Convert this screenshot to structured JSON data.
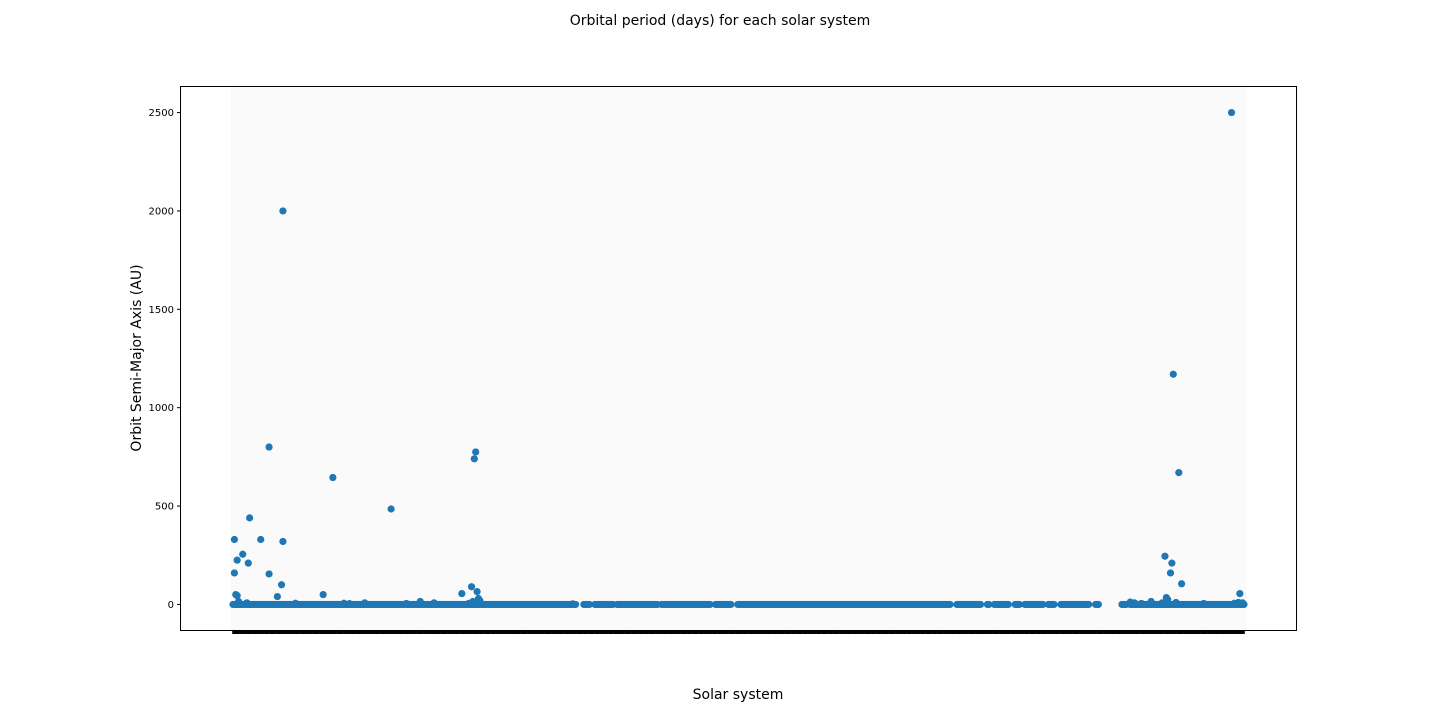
{
  "chart_data": {
    "type": "scatter",
    "title": "Orbital period (days) for each solar system",
    "xlabel": "Solar system",
    "ylabel": "Orbit Semi-Major Axis (AU)",
    "ylim": [
      -130,
      2630
    ],
    "y_ticks": [
      0,
      500,
      1000,
      1500,
      2000,
      2500
    ],
    "grid": false,
    "legend": "none",
    "n_systems": 730,
    "marker_color": "#1f77b4",
    "plot_background": "#fafafa",
    "x_tick_labels_visible": false,
    "missing_ranges": [
      [
        248,
        252
      ],
      [
        258,
        260
      ],
      [
        275,
        276
      ],
      [
        307,
        308
      ],
      [
        345,
        347
      ],
      [
        360,
        363
      ],
      [
        518,
        521
      ],
      [
        540,
        543
      ],
      [
        546,
        548
      ],
      [
        560,
        563
      ],
      [
        568,
        570
      ],
      [
        585,
        587
      ],
      [
        593,
        596
      ],
      [
        618,
        621
      ],
      [
        625,
        640
      ],
      [
        645,
        646
      ]
    ],
    "points": [
      {
        "x": 1,
        "y": 330
      },
      {
        "x": 1,
        "y": 160
      },
      {
        "x": 2,
        "y": 50
      },
      {
        "x": 3,
        "y": 45
      },
      {
        "x": 3,
        "y": 225
      },
      {
        "x": 4,
        "y": 15
      },
      {
        "x": 5,
        "y": 5
      },
      {
        "x": 7,
        "y": 255
      },
      {
        "x": 10,
        "y": 8
      },
      {
        "x": 11,
        "y": 210
      },
      {
        "x": 12,
        "y": 440
      },
      {
        "x": 20,
        "y": 330
      },
      {
        "x": 26,
        "y": 800
      },
      {
        "x": 26,
        "y": 155
      },
      {
        "x": 32,
        "y": 40
      },
      {
        "x": 35,
        "y": 100
      },
      {
        "x": 36,
        "y": 2000
      },
      {
        "x": 36,
        "y": 320
      },
      {
        "x": 45,
        "y": 6
      },
      {
        "x": 65,
        "y": 50
      },
      {
        "x": 72,
        "y": 645
      },
      {
        "x": 80,
        "y": 6
      },
      {
        "x": 84,
        "y": 4
      },
      {
        "x": 95,
        "y": 8
      },
      {
        "x": 114,
        "y": 485
      },
      {
        "x": 125,
        "y": 5
      },
      {
        "x": 135,
        "y": 15
      },
      {
        "x": 145,
        "y": 8
      },
      {
        "x": 165,
        "y": 55
      },
      {
        "x": 170,
        "y": 5
      },
      {
        "x": 171,
        "y": 6
      },
      {
        "x": 172,
        "y": 90
      },
      {
        "x": 173,
        "y": 15
      },
      {
        "x": 174,
        "y": 740
      },
      {
        "x": 175,
        "y": 775
      },
      {
        "x": 176,
        "y": 65
      },
      {
        "x": 177,
        "y": 30
      },
      {
        "x": 178,
        "y": 20
      },
      {
        "x": 245,
        "y": 3
      },
      {
        "x": 647,
        "y": 12
      },
      {
        "x": 650,
        "y": 8
      },
      {
        "x": 655,
        "y": 5
      },
      {
        "x": 662,
        "y": 15
      },
      {
        "x": 670,
        "y": 8
      },
      {
        "x": 672,
        "y": 245
      },
      {
        "x": 673,
        "y": 35
      },
      {
        "x": 674,
        "y": 25
      },
      {
        "x": 676,
        "y": 160
      },
      {
        "x": 677,
        "y": 210
      },
      {
        "x": 678,
        "y": 1170
      },
      {
        "x": 680,
        "y": 10
      },
      {
        "x": 682,
        "y": 670
      },
      {
        "x": 684,
        "y": 105
      },
      {
        "x": 700,
        "y": 5
      },
      {
        "x": 720,
        "y": 2500
      },
      {
        "x": 722,
        "y": 6
      },
      {
        "x": 725,
        "y": 10
      },
      {
        "x": 726,
        "y": 55
      },
      {
        "x": 728,
        "y": 8
      }
    ]
  }
}
